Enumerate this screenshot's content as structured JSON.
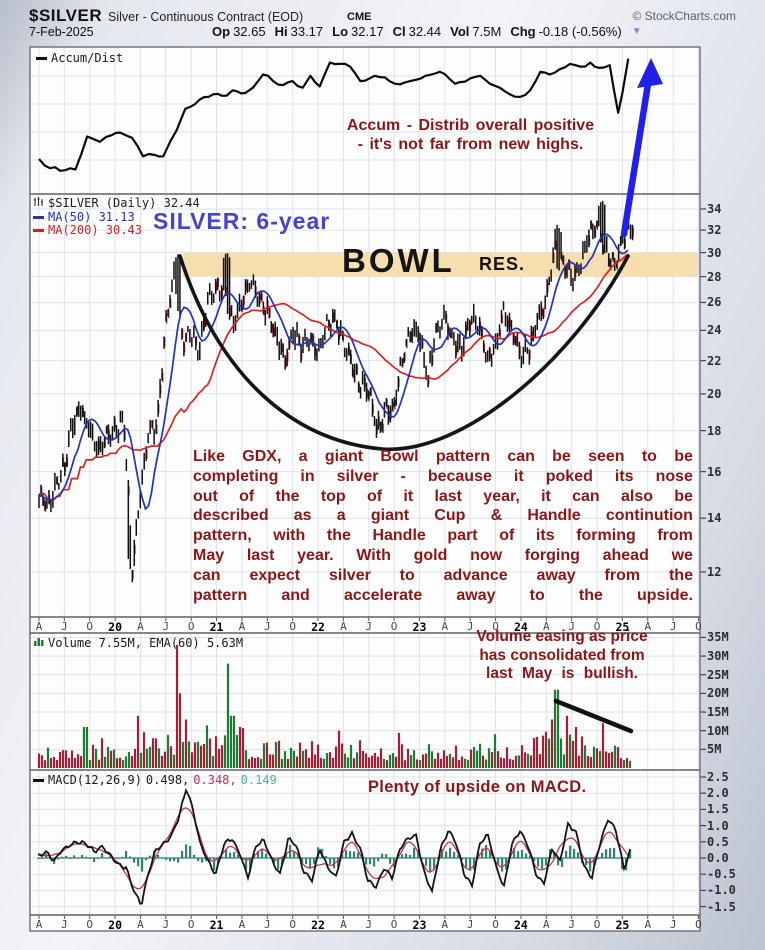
{
  "header": {
    "symbol": "$SILVER",
    "name": "Silver - Continuous Contract (EOD)",
    "exchange": "CME",
    "copyright": "© StockCharts.com",
    "date": "7-Feb-2025",
    "quote_fields": [
      {
        "label": "Op",
        "value": "32.65"
      },
      {
        "label": "Hi",
        "value": "33.17"
      },
      {
        "label": "Lo",
        "value": "32.17"
      },
      {
        "label": "Cl",
        "value": "32.44"
      },
      {
        "label": "Vol",
        "value": "7.5M"
      },
      {
        "label": "Chg",
        "value": "-0.18 (-0.56%)"
      }
    ],
    "dropdown_icon": "▼"
  },
  "panels": {
    "accum": {
      "legend": "Accum/Dist",
      "annotation": [
        "Accum - Distrib overall positive",
        "- it's not far from new highs."
      ]
    },
    "price": {
      "legend_symbol": "$SILVER (Daily) 32.44",
      "legend_ma50": "MA(50) 31.13",
      "legend_ma200": "MA(200) 30.43",
      "annotation_title": "SILVER: 6-year",
      "bowl_label": "BOWL",
      "res_label": "RES.",
      "paragraph": [
        "Like GDX, a giant Bowl pattern can be seen to be",
        "completing in silver - because it poked its nose",
        "out of the top of it last year, it can also be",
        "described as a giant Cup & Handle continution",
        "pattern, with the Handle part of its forming from",
        "May last year. With gold now forging ahead we",
        "can expect silver to advance away from the",
        "pattern and accelerate away to the upside."
      ]
    },
    "volume": {
      "legend": "Volume 7.55M, EMA(60) 5.63M",
      "annotation": [
        "Volume easing as price",
        "has consolidated from",
        "last May is bullish."
      ]
    },
    "macd": {
      "legend_name": "MACD(12,26,9)",
      "v1": "0.498,",
      "v2": "0.348,",
      "v3": "0.149",
      "annotation": "Plenty of upside on MACD."
    }
  },
  "axes": {
    "price_ticks": [
      34,
      32,
      30,
      28,
      26,
      24,
      22,
      20,
      18,
      16,
      14,
      12
    ],
    "volume_ticks": [
      "35M",
      "30M",
      "25M",
      "20M",
      "15M",
      "10M",
      "5M"
    ],
    "volume_tick_values": [
      35,
      30,
      25,
      20,
      15,
      10,
      5
    ],
    "macd_ticks": [
      "2.5",
      "2.0",
      "1.5",
      "1.0",
      "0.5",
      "0.0",
      "-0.5",
      "-1.0",
      "-1.5"
    ],
    "macd_tick_values": [
      2.5,
      2.0,
      1.5,
      1.0,
      0.5,
      0.0,
      -0.5,
      -1.0,
      -1.5
    ],
    "time_ticks": [
      "A",
      "J",
      "O",
      "20",
      "A",
      "J",
      "O",
      "21",
      "A",
      "J",
      "O",
      "22",
      "A",
      "J",
      "O",
      "23",
      "A",
      "J",
      "O",
      "24",
      "A",
      "J",
      "O",
      "25",
      "A",
      "J",
      "O"
    ]
  },
  "colors": {
    "annotation_red": "#8b1616",
    "annotation_blue": "#4444cc",
    "ma50_blue": "#2233bb",
    "ma200_red": "#dd2222",
    "candle_black": "#101010",
    "candle_red": "#ab1526",
    "volume_crimson": "#a41e34",
    "volume_green": "#1f7a33",
    "macd_line": "#131313",
    "macd_signal": "#c03a50",
    "macd_hist_teal": "#2e8576",
    "resistance_band": "#f6ddab",
    "arrow_blue": "#2020e8"
  },
  "chart_data": [
    {
      "panel": "accum_dist",
      "type": "line",
      "name": "Accum/Dist",
      "scale_note": "relative level 0-100 (panel has no numeric axis in source)",
      "points": [
        [
          0,
          22
        ],
        [
          0.7,
          17
        ],
        [
          2.5,
          13
        ],
        [
          4.3,
          14
        ],
        [
          5.7,
          39
        ],
        [
          7.2,
          35
        ],
        [
          8.6,
          40
        ],
        [
          9.6,
          42
        ],
        [
          11.0,
          38
        ],
        [
          12.3,
          24
        ],
        [
          13.7,
          25
        ],
        [
          14.7,
          24
        ],
        [
          15.5,
          35
        ],
        [
          16.3,
          44
        ],
        [
          17.3,
          60
        ],
        [
          19.0,
          67
        ],
        [
          20.6,
          71
        ],
        [
          22.2,
          70
        ],
        [
          22.9,
          74
        ],
        [
          24.4,
          72
        ],
        [
          25.3,
          76
        ],
        [
          26.5,
          86
        ],
        [
          27.7,
          81
        ],
        [
          28.9,
          78
        ],
        [
          30.0,
          81
        ],
        [
          31.2,
          76
        ],
        [
          32.1,
          85
        ],
        [
          33.2,
          77
        ],
        [
          34.4,
          95
        ],
        [
          35.6,
          94
        ],
        [
          36.8,
          92
        ],
        [
          38.0,
          81
        ],
        [
          39.1,
          83
        ],
        [
          40.3,
          84
        ],
        [
          42.1,
          79
        ],
        [
          43.9,
          81
        ],
        [
          45.7,
          85
        ],
        [
          47.4,
          88
        ],
        [
          49.2,
          79
        ],
        [
          51.0,
          83
        ],
        [
          52.2,
          85
        ],
        [
          53.3,
          79
        ],
        [
          54.5,
          76
        ],
        [
          55.7,
          71
        ],
        [
          56.9,
          69
        ],
        [
          58.1,
          74
        ],
        [
          59.3,
          88
        ],
        [
          60.4,
          86
        ],
        [
          61.6,
          90
        ],
        [
          62.8,
          94
        ],
        [
          64.0,
          92
        ],
        [
          65.2,
          95
        ],
        [
          66.3,
          91
        ],
        [
          67.5,
          93
        ],
        [
          68.5,
          57
        ],
        [
          69.0,
          72
        ],
        [
          69.7,
          98
        ]
      ]
    },
    {
      "panel": "price",
      "type": "candlestick",
      "symbol": "$SILVER",
      "start_month": "2019-04",
      "end_month": "2025-02",
      "last_close": 32.44,
      "ma50": 31.13,
      "ma200": 30.43,
      "scale": "log",
      "ylim": [
        11.5,
        35.5
      ],
      "resistance_zone_price": [
        28,
        30
      ],
      "monthly_closes": [
        15.0,
        14.5,
        15.3,
        16.3,
        18.3,
        19.2,
        18.0,
        17.0,
        17.9,
        18.0,
        18.7,
        12.0,
        15.0,
        17.9,
        18.2,
        24.2,
        28.2,
        23.2,
        23.7,
        22.6,
        26.4,
        27.0,
        26.7,
        24.5,
        25.9,
        28.0,
        26.1,
        25.5,
        23.9,
        22.0,
        23.9,
        22.8,
        23.3,
        22.5,
        24.4,
        24.9,
        23.0,
        21.7,
        20.4,
        20.2,
        17.9,
        19.0,
        19.2,
        22.2,
        24.0,
        23.8,
        20.9,
        24.1,
        25.0,
        23.3,
        22.8,
        24.9,
        24.4,
        22.2,
        22.9,
        25.3,
        23.8,
        22.5,
        22.7,
        24.9,
        26.3,
        30.4,
        29.1,
        28.0,
        28.8,
        31.5,
        32.6,
        30.2,
        28.9,
        31.3,
        32.4
      ],
      "extremes": [
        {
          "m": 11,
          "low": 11.8
        },
        {
          "m": 16.4,
          "high": 29.9
        },
        {
          "m": 22.2,
          "high": 30.1
        },
        {
          "m": 61.3,
          "high": 32.5
        },
        {
          "m": 66.6,
          "high": 34.9
        }
      ]
    },
    {
      "panel": "volume",
      "type": "bar",
      "latest": "7.55M",
      "ema60": "5.63M",
      "typical_range_millions": [
        3,
        9
      ],
      "spikes": [
        {
          "m": 5.5,
          "v_millions": 11,
          "color": "g"
        },
        {
          "m": 7.3,
          "v_millions": 8,
          "color": "r"
        },
        {
          "m": 11.8,
          "v_millions": 14,
          "color": "r"
        },
        {
          "m": 16.3,
          "v_millions": 33,
          "color": "r"
        },
        {
          "m": 16.8,
          "v_millions": 20,
          "color": "r"
        },
        {
          "m": 17.3,
          "v_millions": 13,
          "color": "r"
        },
        {
          "m": 22.3,
          "v_millions": 28,
          "color": "g"
        },
        {
          "m": 22.9,
          "v_millions": 14,
          "color": "g"
        },
        {
          "m": 23.8,
          "v_millions": 11,
          "color": "r"
        },
        {
          "m": 35.5,
          "v_millions": 10,
          "color": "r"
        },
        {
          "m": 60.6,
          "v_millions": 13,
          "color": "r"
        },
        {
          "m": 61.2,
          "v_millions": 21,
          "color": "g"
        },
        {
          "m": 62.3,
          "v_millions": 14,
          "color": "r"
        },
        {
          "m": 63.6,
          "v_millions": 11,
          "color": "r"
        },
        {
          "m": 66.6,
          "v_millions": 12,
          "color": "r"
        }
      ]
    },
    {
      "panel": "macd",
      "type": "line",
      "params": "12,26,9",
      "latest": [
        0.498,
        0.348,
        0.149
      ],
      "points": [
        [
          0,
          0.05
        ],
        [
          0.8,
          0.2
        ],
        [
          1.8,
          -0.1
        ],
        [
          2.7,
          0.25
        ],
        [
          3.7,
          0.4
        ],
        [
          4.6,
          0.5
        ],
        [
          5.6,
          0.45
        ],
        [
          6.5,
          0.2
        ],
        [
          7.5,
          0.35
        ],
        [
          8.4,
          0.1
        ],
        [
          9.3,
          -0.2
        ],
        [
          10.3,
          -0.3
        ],
        [
          11.2,
          -1.0
        ],
        [
          12.1,
          -1.45
        ],
        [
          12.9,
          -0.5
        ],
        [
          13.8,
          0.25
        ],
        [
          14.8,
          0.45
        ],
        [
          15.7,
          0.7
        ],
        [
          16.6,
          1.3
        ],
        [
          17.4,
          2.15
        ],
        [
          18.2,
          1.5
        ],
        [
          19.0,
          0.5
        ],
        [
          20.0,
          -0.1
        ],
        [
          20.9,
          -0.5
        ],
        [
          21.9,
          0.45
        ],
        [
          22.8,
          0.6
        ],
        [
          23.8,
          0.1
        ],
        [
          24.7,
          -0.6
        ],
        [
          25.7,
          0.4
        ],
        [
          26.6,
          0.55
        ],
        [
          27.6,
          -0.1
        ],
        [
          28.5,
          -0.5
        ],
        [
          29.5,
          0.6
        ],
        [
          30.4,
          0.4
        ],
        [
          31.3,
          -0.4
        ],
        [
          32.3,
          -0.7
        ],
        [
          33.2,
          0.3
        ],
        [
          34.2,
          -0.3
        ],
        [
          35.1,
          -0.6
        ],
        [
          36.1,
          0.5
        ],
        [
          37.0,
          0.75
        ],
        [
          38.0,
          0.3
        ],
        [
          38.9,
          -0.7
        ],
        [
          39.9,
          -0.9
        ],
        [
          40.8,
          -0.3
        ],
        [
          41.8,
          -0.6
        ],
        [
          42.7,
          0.3
        ],
        [
          43.6,
          0.6
        ],
        [
          44.6,
          0.7
        ],
        [
          45.5,
          -0.4
        ],
        [
          46.5,
          -1.05
        ],
        [
          47.4,
          0.2
        ],
        [
          48.4,
          0.85
        ],
        [
          49.3,
          0.5
        ],
        [
          50.3,
          -0.5
        ],
        [
          51.2,
          -0.85
        ],
        [
          52.2,
          0.5
        ],
        [
          53.1,
          0.7
        ],
        [
          54.1,
          -0.3
        ],
        [
          55.0,
          -0.9
        ],
        [
          55.9,
          0.4
        ],
        [
          56.9,
          0.85
        ],
        [
          57.8,
          0.4
        ],
        [
          58.8,
          -0.5
        ],
        [
          59.7,
          -0.8
        ],
        [
          60.7,
          0.3
        ],
        [
          61.6,
          -0.1
        ],
        [
          62.6,
          1.05
        ],
        [
          63.5,
          0.8
        ],
        [
          64.5,
          -0.3
        ],
        [
          65.4,
          -0.6
        ],
        [
          66.3,
          0.4
        ],
        [
          67.3,
          1.2
        ],
        [
          68.2,
          0.9
        ],
        [
          69.2,
          -0.35
        ],
        [
          70.2,
          0.5
        ]
      ]
    }
  ]
}
